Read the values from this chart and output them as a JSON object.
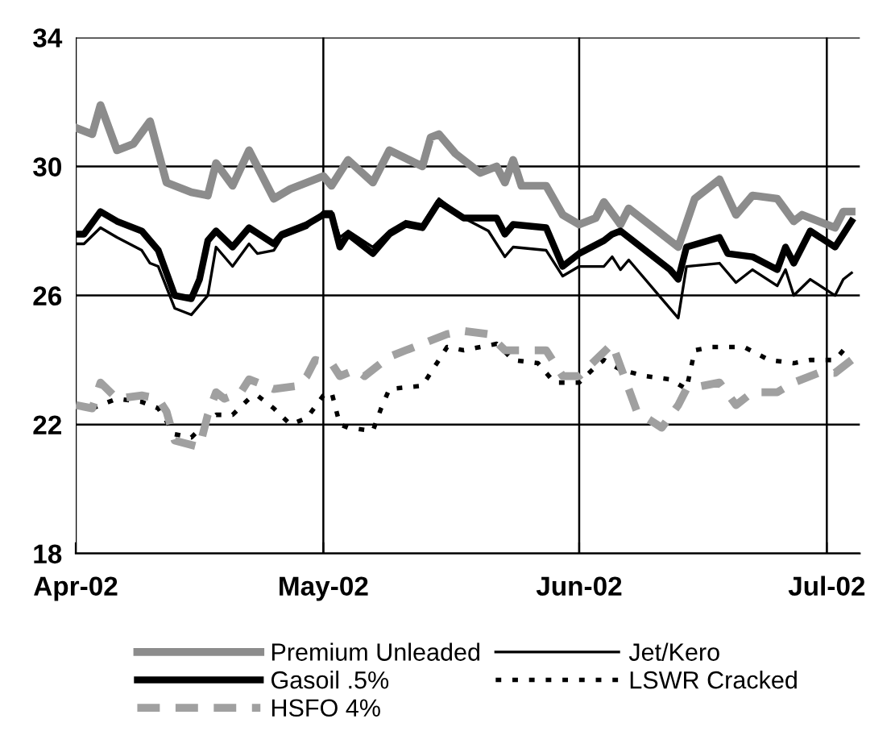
{
  "chart_data": {
    "type": "line",
    "xlim": [
      "2002-04-01",
      "2002-07-05"
    ],
    "ylim": [
      18,
      34
    ],
    "yticks": [
      18,
      22,
      26,
      30,
      34
    ],
    "xticks": [
      {
        "value": "2002-04-01",
        "label": "Apr-02"
      },
      {
        "value": "2002-05-01",
        "label": "May-02"
      },
      {
        "value": "2002-06-01",
        "label": "Jun-02"
      },
      {
        "value": "2002-07-01",
        "label": "Jul-02"
      }
    ],
    "grid": true,
    "legend": "bottom",
    "marker": "none",
    "series": [
      {
        "name": "Premium Unleaded",
        "color": "#8c8c8c",
        "line_style": "solid",
        "x": [
          "2002-04-01",
          "2002-04-03",
          "2002-04-04",
          "2002-04-06",
          "2002-04-08",
          "2002-04-10",
          "2002-04-12",
          "2002-04-15",
          "2002-04-17",
          "2002-04-18",
          "2002-04-20",
          "2002-04-22",
          "2002-04-25",
          "2002-04-27",
          "2002-04-29",
          "2002-05-01",
          "2002-05-02",
          "2002-05-04",
          "2002-05-07",
          "2002-05-09",
          "2002-05-13",
          "2002-05-14",
          "2002-05-15",
          "2002-05-17",
          "2002-05-18",
          "2002-05-20",
          "2002-05-22",
          "2002-05-23",
          "2002-05-24",
          "2002-05-25",
          "2002-05-28",
          "2002-05-30",
          "2002-06-01",
          "2002-06-03",
          "2002-06-04",
          "2002-06-06",
          "2002-06-07",
          "2002-06-12",
          "2002-06-13",
          "2002-06-15",
          "2002-06-18",
          "2002-06-20",
          "2002-06-22",
          "2002-06-25",
          "2002-06-27",
          "2002-06-28",
          "2002-07-02",
          "2002-07-03",
          "2002-07-04"
        ],
        "values": [
          31.2,
          31.0,
          31.9,
          30.5,
          30.7,
          31.4,
          29.5,
          29.2,
          29.1,
          30.1,
          29.4,
          30.5,
          29.0,
          29.3,
          29.5,
          29.7,
          29.4,
          30.2,
          29.5,
          30.5,
          30.0,
          30.9,
          31.0,
          30.4,
          30.2,
          29.8,
          30.0,
          29.5,
          30.2,
          29.4,
          29.4,
          28.5,
          28.2,
          28.4,
          28.9,
          28.2,
          28.7,
          27.7,
          27.5,
          29.0,
          29.6,
          28.5,
          29.1,
          29.0,
          28.3,
          28.5,
          28.1,
          28.6,
          28.6
        ]
      },
      {
        "name": "Jet/Kero",
        "color": "#000000",
        "line_style": "solid",
        "x": [
          "2002-04-01",
          "2002-04-02",
          "2002-04-04",
          "2002-04-06",
          "2002-04-09",
          "2002-04-10",
          "2002-04-11",
          "2002-04-13",
          "2002-04-15",
          "2002-04-17",
          "2002-04-18",
          "2002-04-20",
          "2002-04-22",
          "2002-04-23",
          "2002-04-25",
          "2002-04-26",
          "2002-04-29",
          "2002-05-01",
          "2002-05-02",
          "2002-05-03",
          "2002-05-04",
          "2002-05-07",
          "2002-05-09",
          "2002-05-11",
          "2002-05-13",
          "2002-05-15",
          "2002-05-18",
          "2002-05-21",
          "2002-05-23",
          "2002-05-24",
          "2002-05-28",
          "2002-05-30",
          "2002-06-01",
          "2002-06-04",
          "2002-06-05",
          "2002-06-06",
          "2002-06-07",
          "2002-06-11",
          "2002-06-13",
          "2002-06-14",
          "2002-06-18",
          "2002-06-20",
          "2002-06-22",
          "2002-06-25",
          "2002-06-26",
          "2002-06-27",
          "2002-06-29",
          "2002-07-02",
          "2002-07-03",
          "2002-07-04"
        ],
        "values": [
          27.6,
          27.6,
          28.1,
          27.8,
          27.4,
          27.0,
          26.9,
          25.6,
          25.4,
          26.0,
          27.5,
          26.9,
          27.6,
          27.3,
          27.4,
          27.8,
          28.1,
          28.6,
          28.6,
          27.8,
          28.0,
          27.5,
          28.0,
          28.3,
          28.2,
          29.0,
          28.4,
          28.0,
          27.2,
          27.5,
          27.4,
          26.6,
          26.9,
          26.9,
          27.2,
          26.8,
          27.1,
          25.9,
          25.3,
          26.9,
          27.0,
          26.4,
          26.8,
          26.3,
          26.8,
          26.0,
          26.5,
          26.0,
          26.5,
          26.7
        ]
      },
      {
        "name": "Gasoil .5%",
        "color": "#000000",
        "line_style": "solid",
        "x": [
          "2002-04-01",
          "2002-04-02",
          "2002-04-04",
          "2002-04-06",
          "2002-04-09",
          "2002-04-10",
          "2002-04-11",
          "2002-04-13",
          "2002-04-15",
          "2002-04-16",
          "2002-04-17",
          "2002-04-18",
          "2002-04-20",
          "2002-04-22",
          "2002-04-25",
          "2002-04-26",
          "2002-04-29",
          "2002-05-01",
          "2002-05-02",
          "2002-05-03",
          "2002-05-04",
          "2002-05-07",
          "2002-05-09",
          "2002-05-11",
          "2002-05-13",
          "2002-05-15",
          "2002-05-18",
          "2002-05-22",
          "2002-05-23",
          "2002-05-24",
          "2002-05-28",
          "2002-05-30",
          "2002-06-01",
          "2002-06-04",
          "2002-06-05",
          "2002-06-06",
          "2002-06-12",
          "2002-06-13",
          "2002-06-14",
          "2002-06-18",
          "2002-06-19",
          "2002-06-22",
          "2002-06-25",
          "2002-06-26",
          "2002-06-27",
          "2002-06-29",
          "2002-07-02",
          "2002-07-04"
        ],
        "values": [
          27.9,
          27.9,
          28.6,
          28.3,
          28.0,
          27.7,
          27.4,
          26.0,
          25.9,
          26.5,
          27.7,
          28.0,
          27.5,
          28.1,
          27.6,
          27.9,
          28.2,
          28.5,
          28.5,
          27.5,
          27.9,
          27.3,
          27.9,
          28.2,
          28.1,
          28.9,
          28.4,
          28.4,
          27.9,
          28.2,
          28.1,
          26.9,
          27.3,
          27.7,
          27.9,
          28.0,
          26.8,
          26.5,
          27.5,
          27.8,
          27.3,
          27.2,
          26.8,
          27.5,
          27.0,
          28.0,
          27.5,
          28.3
        ]
      },
      {
        "name": "LSWR Cracked",
        "color": "#000000",
        "line_style": "dotted",
        "x": [
          "2002-04-01",
          "2002-04-03",
          "2002-04-06",
          "2002-04-09",
          "2002-04-11",
          "2002-04-13",
          "2002-04-15",
          "2002-04-17",
          "2002-04-18",
          "2002-04-20",
          "2002-04-22",
          "2002-04-23",
          "2002-04-25",
          "2002-04-27",
          "2002-04-29",
          "2002-05-01",
          "2002-05-02",
          "2002-05-03",
          "2002-05-04",
          "2002-05-07",
          "2002-05-08",
          "2002-05-09",
          "2002-05-13",
          "2002-05-15",
          "2002-05-16",
          "2002-05-18",
          "2002-05-22",
          "2002-05-24",
          "2002-05-27",
          "2002-05-29",
          "2002-06-01",
          "2002-06-03",
          "2002-06-04",
          "2002-06-06",
          "2002-06-09",
          "2002-06-12",
          "2002-06-14",
          "2002-06-15",
          "2002-06-17",
          "2002-06-21",
          "2002-06-24",
          "2002-06-27",
          "2002-06-29",
          "2002-07-02",
          "2002-07-03"
        ],
        "values": [
          22.6,
          22.5,
          22.8,
          22.7,
          22.5,
          21.7,
          21.6,
          22.1,
          22.3,
          22.3,
          22.8,
          22.9,
          22.5,
          22.0,
          22.2,
          22.9,
          23.0,
          22.0,
          21.9,
          21.8,
          22.5,
          23.1,
          23.2,
          24.0,
          24.4,
          24.3,
          24.5,
          24.0,
          23.9,
          23.3,
          23.3,
          23.8,
          24.0,
          23.7,
          23.5,
          23.4,
          23.1,
          24.3,
          24.4,
          24.4,
          24.0,
          23.9,
          24.0,
          24.0,
          24.3
        ]
      },
      {
        "name": "HSFO 4%",
        "color": "#a0a0a0",
        "line_style": "dashed",
        "x": [
          "2002-04-01",
          "2002-04-03",
          "2002-04-04",
          "2002-04-06",
          "2002-04-09",
          "2002-04-11",
          "2002-04-12",
          "2002-04-13",
          "2002-04-16",
          "2002-04-17",
          "2002-04-18",
          "2002-04-19",
          "2002-04-21",
          "2002-04-22",
          "2002-04-24",
          "2002-04-25",
          "2002-04-28",
          "2002-04-29",
          "2002-04-30",
          "2002-05-02",
          "2002-05-03",
          "2002-05-05",
          "2002-05-06",
          "2002-05-09",
          "2002-05-11",
          "2002-05-14",
          "2002-05-16",
          "2002-05-18",
          "2002-05-21",
          "2002-05-23",
          "2002-05-26",
          "2002-05-28",
          "2002-05-30",
          "2002-06-01",
          "2002-06-03",
          "2002-06-05",
          "2002-06-06",
          "2002-06-08",
          "2002-06-11",
          "2002-06-13",
          "2002-06-14",
          "2002-06-16",
          "2002-06-18",
          "2002-06-20",
          "2002-06-22",
          "2002-06-25",
          "2002-06-27",
          "2002-06-30",
          "2002-07-02",
          "2002-07-04"
        ],
        "values": [
          22.6,
          22.5,
          23.3,
          22.8,
          22.9,
          22.8,
          22.4,
          21.5,
          21.3,
          22.3,
          23.0,
          22.8,
          23.0,
          23.4,
          23.2,
          23.1,
          23.2,
          23.5,
          24.0,
          23.9,
          23.5,
          23.7,
          23.5,
          24.1,
          24.3,
          24.6,
          24.8,
          24.9,
          24.8,
          24.3,
          24.3,
          24.3,
          23.5,
          23.5,
          24.0,
          24.5,
          23.8,
          22.4,
          21.9,
          22.6,
          23.1,
          23.2,
          23.3,
          22.6,
          23.0,
          23.0,
          23.3,
          23.6,
          23.6,
          24.0
        ]
      }
    ]
  }
}
